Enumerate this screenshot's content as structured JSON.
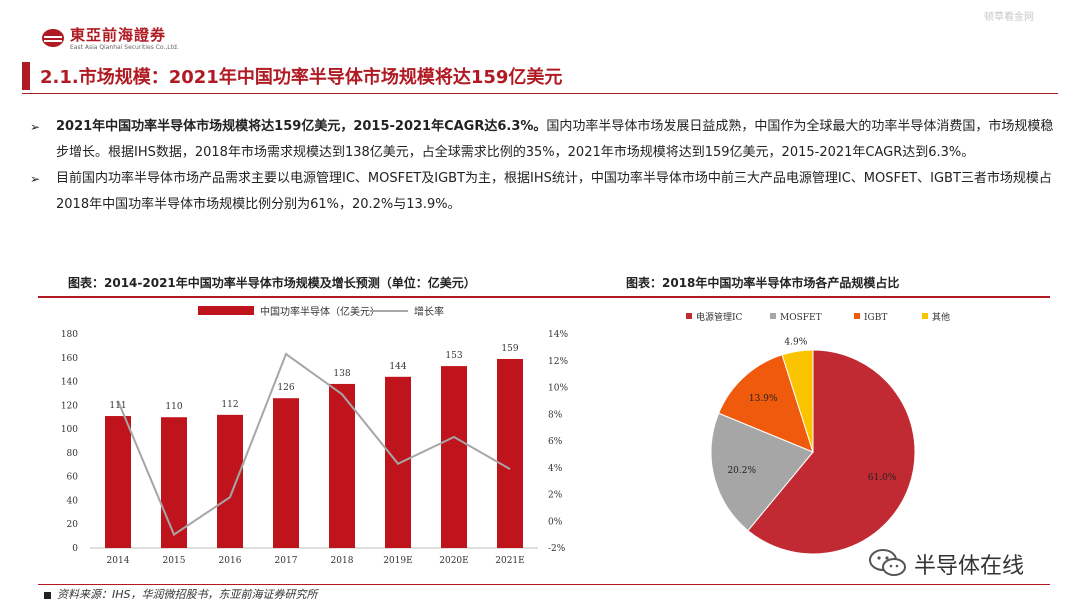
{
  "header": {
    "logo_cn": "東亞前海證券",
    "logo_en": "East Asia Qianhai Securities Co.,Ltd.",
    "watermark": "顿草看金网"
  },
  "title": "2.1.市场规模：2021年中国功率半导体市场规模将达159亿美元",
  "bullets": [
    {
      "bold": "2021年中国功率半导体市场规模将达159亿美元，2015-2021年CAGR达6.3%。",
      "text": "国内功率半导体市场发展日益成熟，中国作为全球最大的功率半导体消费国，市场规模稳步增长。根据IHS数据，2018年市场需求规模达到138亿美元，占全球需求比例的35%，2021年市场规模将达到159亿美元，2015-2021年CAGR达到6.3%。"
    },
    {
      "bold": "",
      "text": "目前国内功率半导体市场产品需求主要以电源管理IC、MOSFET及IGBT为主，根据IHS统计，中国功率半导体市场中前三大产品电源管理IC、MOSFET、IGBT三者市场规模占 2018年中国功率半导体市场规模比例分别为61%，20.2%与13.9%。"
    }
  ],
  "chart_titles": {
    "left": "图表：2014-2021年中国功率半导体市场规模及增长预测（单位：亿美元）",
    "right": "图表：2018年中国功率半导体市场各产品规模占比"
  },
  "chart_data": [
    {
      "type": "bar",
      "categories": [
        "2014",
        "2015",
        "2016",
        "2017",
        "2018",
        "2019E",
        "2020E",
        "2021E"
      ],
      "series": [
        {
          "name": "中国功率半导体（亿美元）",
          "type": "bar",
          "axis": "left",
          "color": "#c0141d",
          "values": [
            111,
            110,
            112,
            126,
            138,
            144,
            153,
            159
          ],
          "labels": [
            "111",
            "110",
            "112",
            "126",
            "138",
            "144",
            "153",
            "159"
          ]
        },
        {
          "name": "增长率",
          "type": "line",
          "axis": "right",
          "color": "#a6a6a6",
          "values": [
            9.0,
            -1.0,
            1.8,
            12.5,
            9.5,
            4.3,
            6.3,
            3.9
          ]
        }
      ],
      "ylim": [
        0,
        180
      ],
      "yticks": [
        "0",
        "20",
        "40",
        "60",
        "80",
        "100",
        "120",
        "140",
        "160",
        "180"
      ],
      "y2lim": [
        -2,
        14
      ],
      "y2ticks": [
        "-2%",
        "0%",
        "2%",
        "4%",
        "6%",
        "8%",
        "10%",
        "12%",
        "14%"
      ],
      "legend_position": "top"
    },
    {
      "type": "pie",
      "categories": [
        "电源管理IC",
        "MOSFET",
        "IGBT",
        "其他"
      ],
      "values": [
        61.0,
        20.2,
        13.9,
        4.9
      ],
      "labels": [
        "61.0%",
        "20.2%",
        "13.9%",
        "4.9%"
      ],
      "colors": [
        "#c22a33",
        "#a6a6a6",
        "#f05a0c",
        "#fbc400"
      ],
      "legend_position": "top"
    }
  ],
  "source": "资料来源：IHS，华润微招股书，东亚前海证券研究所",
  "wechat_name": "半导体在线"
}
